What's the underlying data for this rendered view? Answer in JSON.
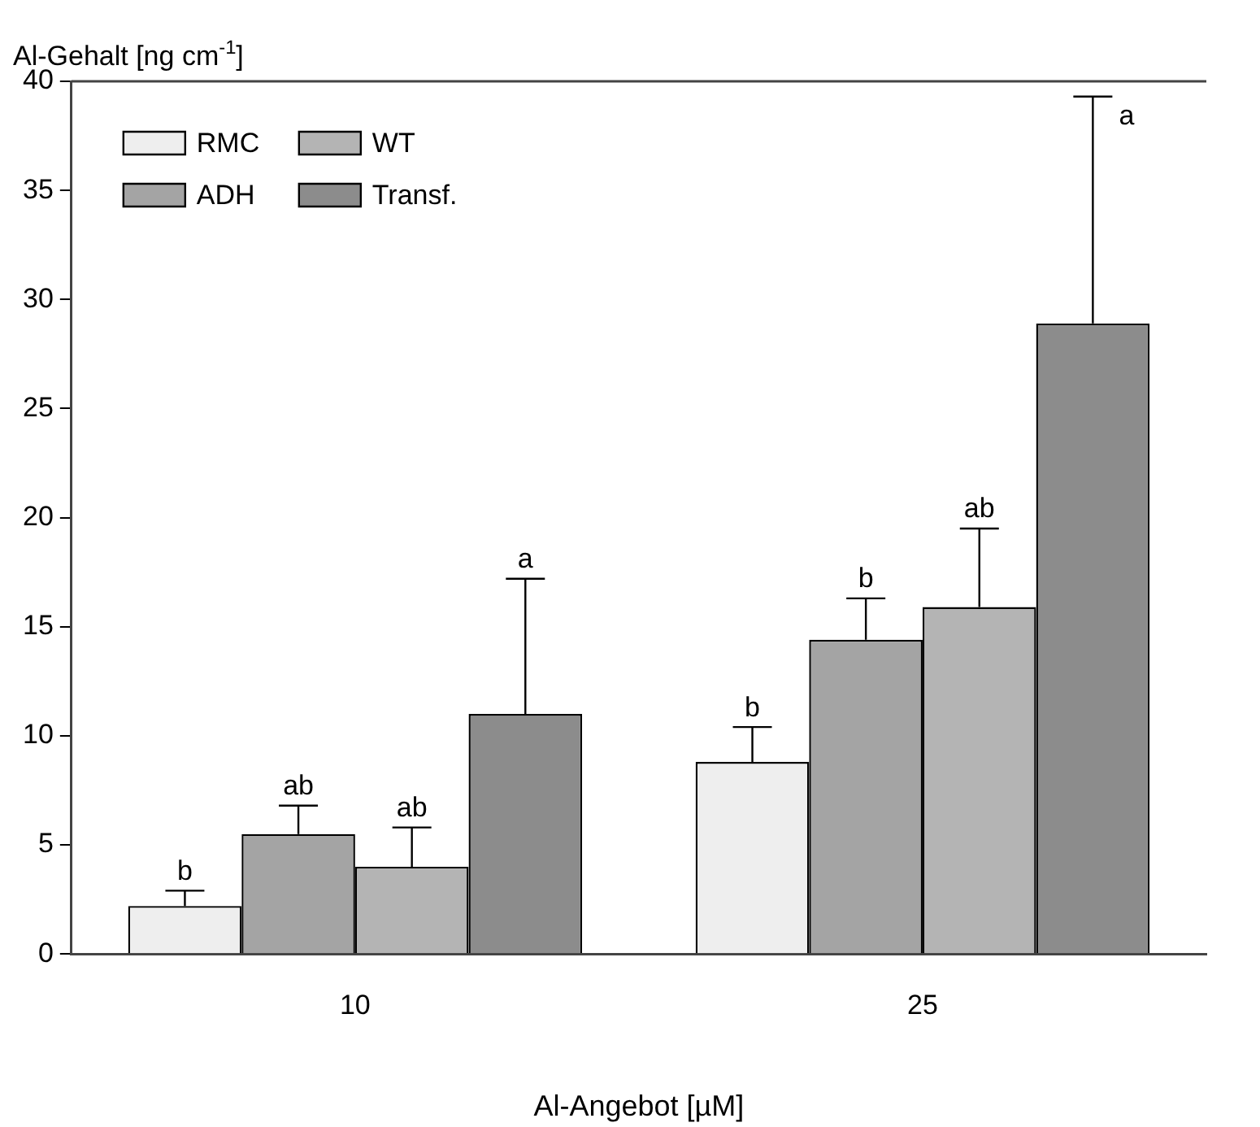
{
  "chart_data": {
    "type": "bar",
    "xlabel": "Al-Angebot [µM]",
    "ylabel": "Al-Gehalt [ng cm$^{-1}$]",
    "categories": [
      "10",
      "25"
    ],
    "series": [
      {
        "name": "RMC",
        "color": "#eeeeee",
        "values": [
          2.2,
          8.8
        ],
        "errors": [
          [
            2.2,
            2.9
          ],
          [
            8.8,
            10.4
          ]
        ]
      },
      {
        "name": "ADH",
        "color": "#a4a4a4",
        "values": [
          5.5,
          14.4
        ],
        "errors": [
          [
            5.5,
            6.8
          ],
          [
            14.4,
            16.3
          ]
        ]
      },
      {
        "name": "WT",
        "color": "#b4b4b4",
        "values": [
          4.0,
          15.9
        ],
        "errors": [
          [
            4.0,
            5.8
          ],
          [
            15.9,
            19.5
          ]
        ]
      },
      {
        "name": "Transf.",
        "color": "#8c8c8c",
        "values": [
          11.0,
          28.9
        ],
        "errors": [
          [
            11.0,
            17.2
          ],
          [
            28.9,
            39.3
          ]
        ]
      }
    ],
    "ylim": [
      0,
      40
    ],
    "yticks": [
      0,
      5,
      10,
      15,
      20,
      25,
      30,
      35,
      40
    ],
    "grid": false,
    "legend": "top left",
    "annotations": [
      "b",
      "ab",
      "ab",
      "a",
      "b",
      "b",
      "ab",
      "a"
    ]
  }
}
